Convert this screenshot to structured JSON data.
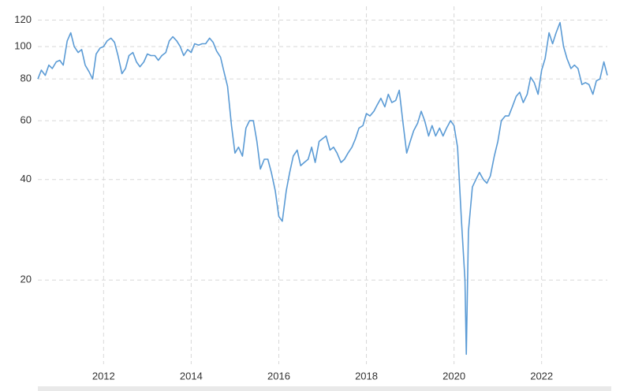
{
  "chart_data": {
    "type": "line",
    "x": [
      2010.5,
      2010.58,
      2010.67,
      2010.75,
      2010.83,
      2010.92,
      2011,
      2011.08,
      2011.17,
      2011.25,
      2011.33,
      2011.42,
      2011.5,
      2011.58,
      2011.67,
      2011.75,
      2011.83,
      2011.92,
      2012,
      2012.08,
      2012.17,
      2012.25,
      2012.33,
      2012.42,
      2012.5,
      2012.58,
      2012.67,
      2012.75,
      2012.83,
      2012.92,
      2013,
      2013.08,
      2013.17,
      2013.25,
      2013.33,
      2013.42,
      2013.5,
      2013.58,
      2013.67,
      2013.75,
      2013.83,
      2013.92,
      2014,
      2014.08,
      2014.17,
      2014.25,
      2014.33,
      2014.42,
      2014.5,
      2014.58,
      2014.67,
      2014.75,
      2014.83,
      2014.92,
      2015,
      2015.08,
      2015.17,
      2015.25,
      2015.33,
      2015.42,
      2015.5,
      2015.58,
      2015.67,
      2015.75,
      2015.83,
      2015.92,
      2016,
      2016.08,
      2016.17,
      2016.25,
      2016.33,
      2016.42,
      2016.5,
      2016.58,
      2016.67,
      2016.75,
      2016.83,
      2016.92,
      2017,
      2017.08,
      2017.17,
      2017.25,
      2017.33,
      2017.42,
      2017.5,
      2017.58,
      2017.67,
      2017.75,
      2017.83,
      2017.92,
      2018,
      2018.08,
      2018.17,
      2018.25,
      2018.33,
      2018.42,
      2018.5,
      2018.58,
      2018.67,
      2018.75,
      2018.83,
      2018.92,
      2019,
      2019.08,
      2019.17,
      2019.25,
      2019.33,
      2019.42,
      2019.5,
      2019.58,
      2019.67,
      2019.75,
      2019.83,
      2019.92,
      2020,
      2020.08,
      2020.17,
      2020.25,
      2020.28,
      2020.33,
      2020.42,
      2020.5,
      2020.58,
      2020.67,
      2020.75,
      2020.83,
      2020.92,
      2021,
      2021.08,
      2021.17,
      2021.25,
      2021.33,
      2021.42,
      2021.5,
      2021.58,
      2021.67,
      2021.75,
      2021.83,
      2021.92,
      2022,
      2022.08,
      2022.17,
      2022.25,
      2022.33,
      2022.42,
      2022.5,
      2022.58,
      2022.67,
      2022.75,
      2022.83,
      2022.92,
      2023,
      2023.08,
      2023.17,
      2023.25,
      2023.33,
      2023.42,
      2023.5
    ],
    "series": [
      {
        "color": "#5b9bd5",
        "values": [
          80,
          85,
          82,
          88,
          86,
          90,
          91,
          88,
          104,
          110,
          100,
          96,
          98,
          88,
          84,
          80,
          95,
          99,
          100,
          104,
          106,
          103,
          94,
          83,
          86,
          94,
          96,
          90,
          87,
          90,
          95,
          94,
          94,
          91,
          94,
          96,
          104,
          107,
          104,
          100,
          94,
          98,
          96,
          102,
          101,
          102,
          102,
          106,
          103,
          97,
          93,
          84,
          76,
          58,
          48,
          50,
          47,
          57,
          60,
          60,
          52,
          43,
          46,
          46,
          42,
          37,
          31,
          30,
          37,
          42,
          47,
          49,
          44,
          45,
          46,
          50,
          45,
          52,
          53,
          54,
          49,
          50,
          48,
          45,
          46,
          48,
          50,
          53,
          57,
          58,
          63,
          62,
          64,
          67,
          70,
          66,
          72,
          68,
          69,
          74,
          60,
          48,
          52,
          56,
          59,
          64,
          60,
          54,
          58,
          54,
          57,
          54,
          57,
          60,
          58,
          50,
          30,
          20,
          12,
          28,
          38,
          40,
          42,
          40,
          39,
          41,
          47,
          52,
          60,
          62,
          62,
          66,
          71,
          73,
          68,
          72,
          81,
          78,
          72,
          85,
          92,
          110,
          102,
          110,
          118,
          100,
          92,
          86,
          88,
          86,
          77,
          78,
          77,
          72,
          79,
          80,
          90,
          82
        ]
      }
    ],
    "xlim": [
      2010.5,
      2023.5
    ],
    "xticks": [
      2012,
      2014,
      2016,
      2018,
      2020,
      2022
    ],
    "ylim": [
      11.2,
      132
    ],
    "yticks": [
      20,
      40,
      60,
      80,
      100,
      120
    ],
    "yscale": "log",
    "grid": true
  }
}
